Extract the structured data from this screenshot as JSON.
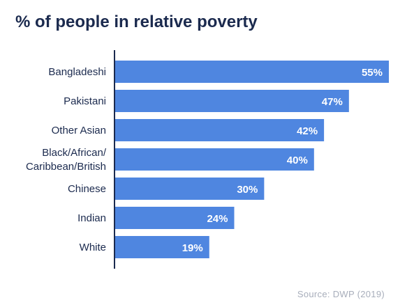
{
  "chart_data": {
    "type": "bar",
    "orientation": "horizontal",
    "title": "% of people in relative poverty",
    "categories": [
      [
        "Bangladeshi"
      ],
      [
        "Pakistani"
      ],
      [
        "Other Asian"
      ],
      [
        "Black/African/",
        "Caribbean/British"
      ],
      [
        "Chinese"
      ],
      [
        "Indian"
      ],
      [
        "White"
      ]
    ],
    "values": [
      55,
      47,
      42,
      40,
      30,
      24,
      19
    ],
    "value_labels": [
      "55%",
      "47%",
      "42%",
      "40%",
      "30%",
      "24%",
      "19%"
    ],
    "xlim": [
      0,
      55
    ],
    "grid": false,
    "legend": "none",
    "source": "Source: DWP (2019)",
    "colors": {
      "bar": "#4f86e0",
      "bar_label": "#ffffff",
      "category_label": "#1b2a4e",
      "axis": "#1b2a4e"
    }
  }
}
